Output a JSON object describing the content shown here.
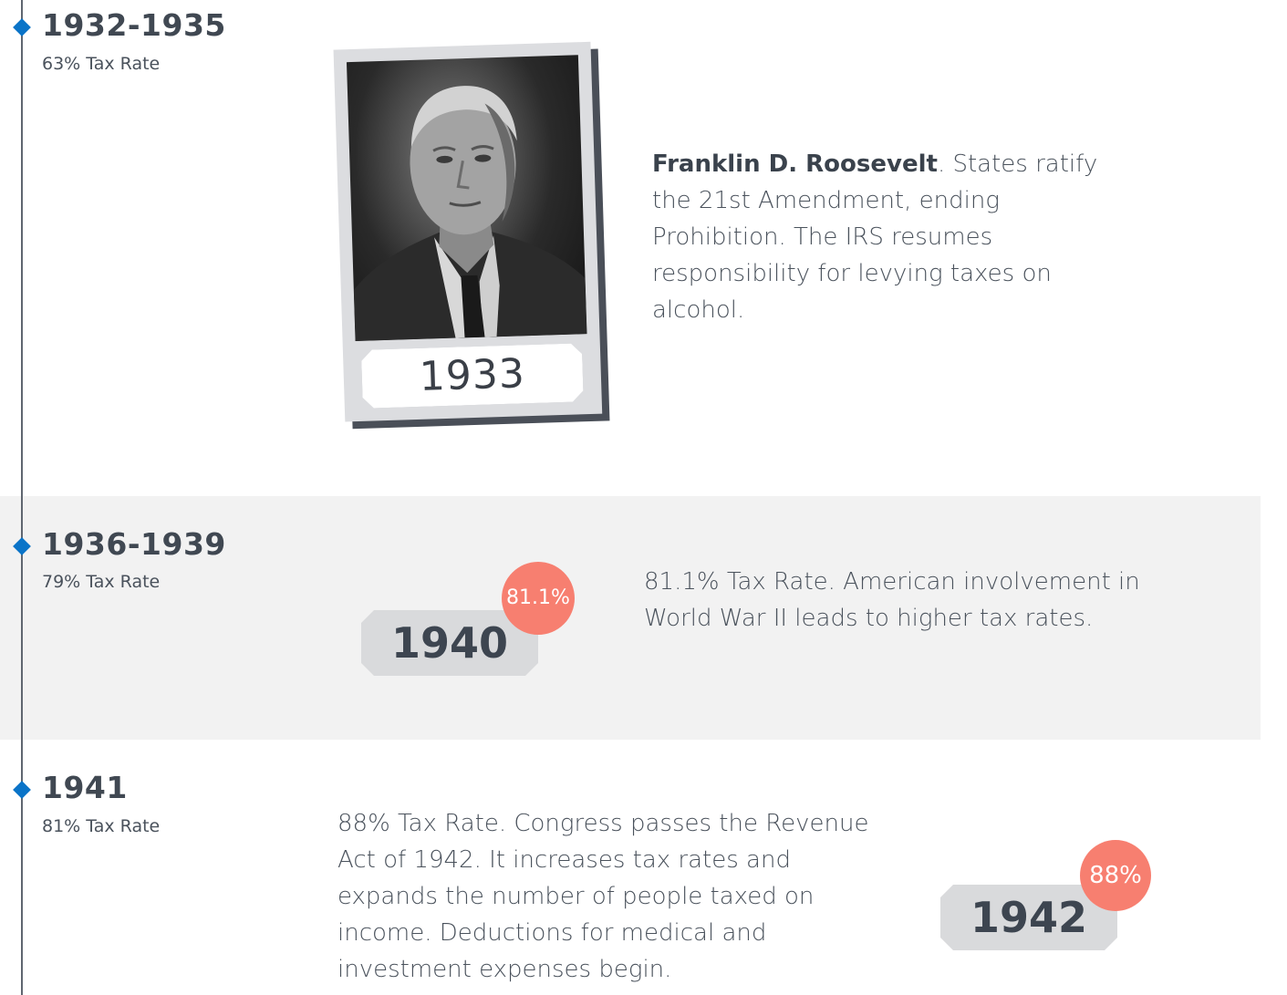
{
  "timeline": [
    {
      "period": "1932-1935",
      "rate_label": "63% Tax Rate",
      "photo_year": "1933",
      "highlight": "Franklin D. Roosevelt",
      "description_rest": ". States ratify the 21st Amendment, ending Prohibition. The IRS resumes responsibility for levying taxes on alcohol."
    },
    {
      "period": "1936-1939",
      "rate_label": "79% Tax Rate",
      "tag_year": "1940",
      "badge": "81.1%",
      "description": "81.1% Tax Rate. American involvement in World War II leads to higher tax rates."
    },
    {
      "period": "1941",
      "rate_label": "81% Tax Rate",
      "tag_year": "1942",
      "badge": "88%",
      "description": "88% Tax Rate. Congress passes the Revenue Act of 1942. It increases tax rates and expands the number of people taxed on income. Deductions for medical and investment expenses begin."
    }
  ],
  "colors": {
    "marker": "#0a74c8",
    "badge": "#f77f70",
    "band": "#f2f2f2",
    "tag": "#d9dadc"
  },
  "icons": {
    "marker": "diamond-marker-icon"
  }
}
